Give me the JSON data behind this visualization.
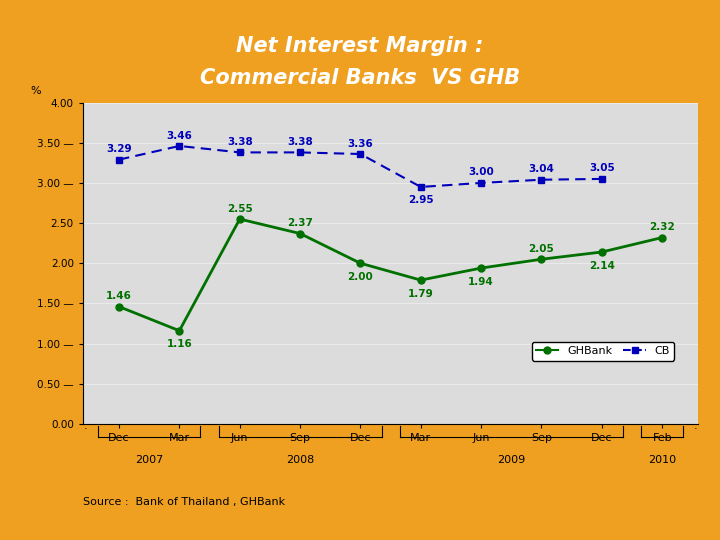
{
  "title_line1": "Net Interest Margin :",
  "title_line2": "Commercial Banks  VS GHB",
  "background_outer": "#F0A020",
  "background_chart": "#DCDCDC",
  "x_labels": [
    "Dec",
    "Mar",
    "Jun",
    "Sep",
    "Dec",
    "Mar",
    "Jun",
    "Sep",
    "Dec",
    "Feb"
  ],
  "ghb_values": [
    1.46,
    1.16,
    2.55,
    2.37,
    2.0,
    1.79,
    1.94,
    2.05,
    2.14,
    2.32
  ],
  "cb_values": [
    3.29,
    3.46,
    3.38,
    3.38,
    3.36,
    2.95,
    3.0,
    3.04,
    3.05,
    null
  ],
  "ghb_color": "#007000",
  "cb_color": "#0000BB",
  "ylim": [
    0.0,
    4.0
  ],
  "yticks": [
    0.0,
    0.5,
    1.0,
    1.5,
    2.0,
    2.5,
    3.0,
    3.5,
    4.0
  ],
  "ytick_labels": [
    "0.00",
    "",
    "1.00 -",
    "",
    "2.00",
    "",
    "3.00 -",
    "",
    "4.00"
  ],
  "ylabel": "%",
  "source_text": "Source :  Bank of Thailand , GHBank",
  "legend_ghb": "GHBank",
  "legend_cb": "CB",
  "year_spans": [
    [
      0,
      1,
      "2007"
    ],
    [
      2,
      4,
      "2008"
    ],
    [
      5,
      8,
      "2009"
    ],
    [
      9,
      9,
      "2010"
    ]
  ]
}
